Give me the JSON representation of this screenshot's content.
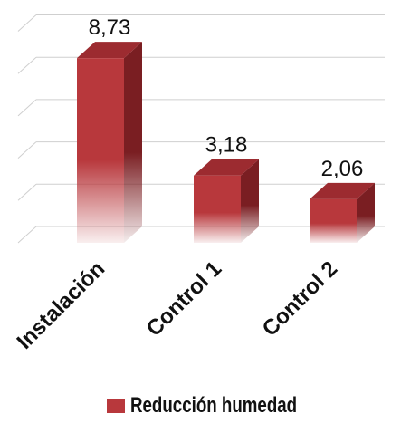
{
  "chart_data": {
    "type": "bar",
    "categories": [
      "Instalación",
      "Control 1",
      "Control 2"
    ],
    "series": [
      {
        "name": "Reducción humedad",
        "values": [
          8.73,
          3.18,
          2.06
        ],
        "labels": [
          "8,73",
          "3,18",
          "2,06"
        ]
      }
    ],
    "ylim": [
      0,
      10
    ],
    "grid": true,
    "legend_position": "bottom",
    "colors": {
      "bar_front": "#b8383c",
      "bar_side": "#7a1e22",
      "bar_top": "#9c2b30",
      "grid": "#cfcfcf"
    }
  }
}
